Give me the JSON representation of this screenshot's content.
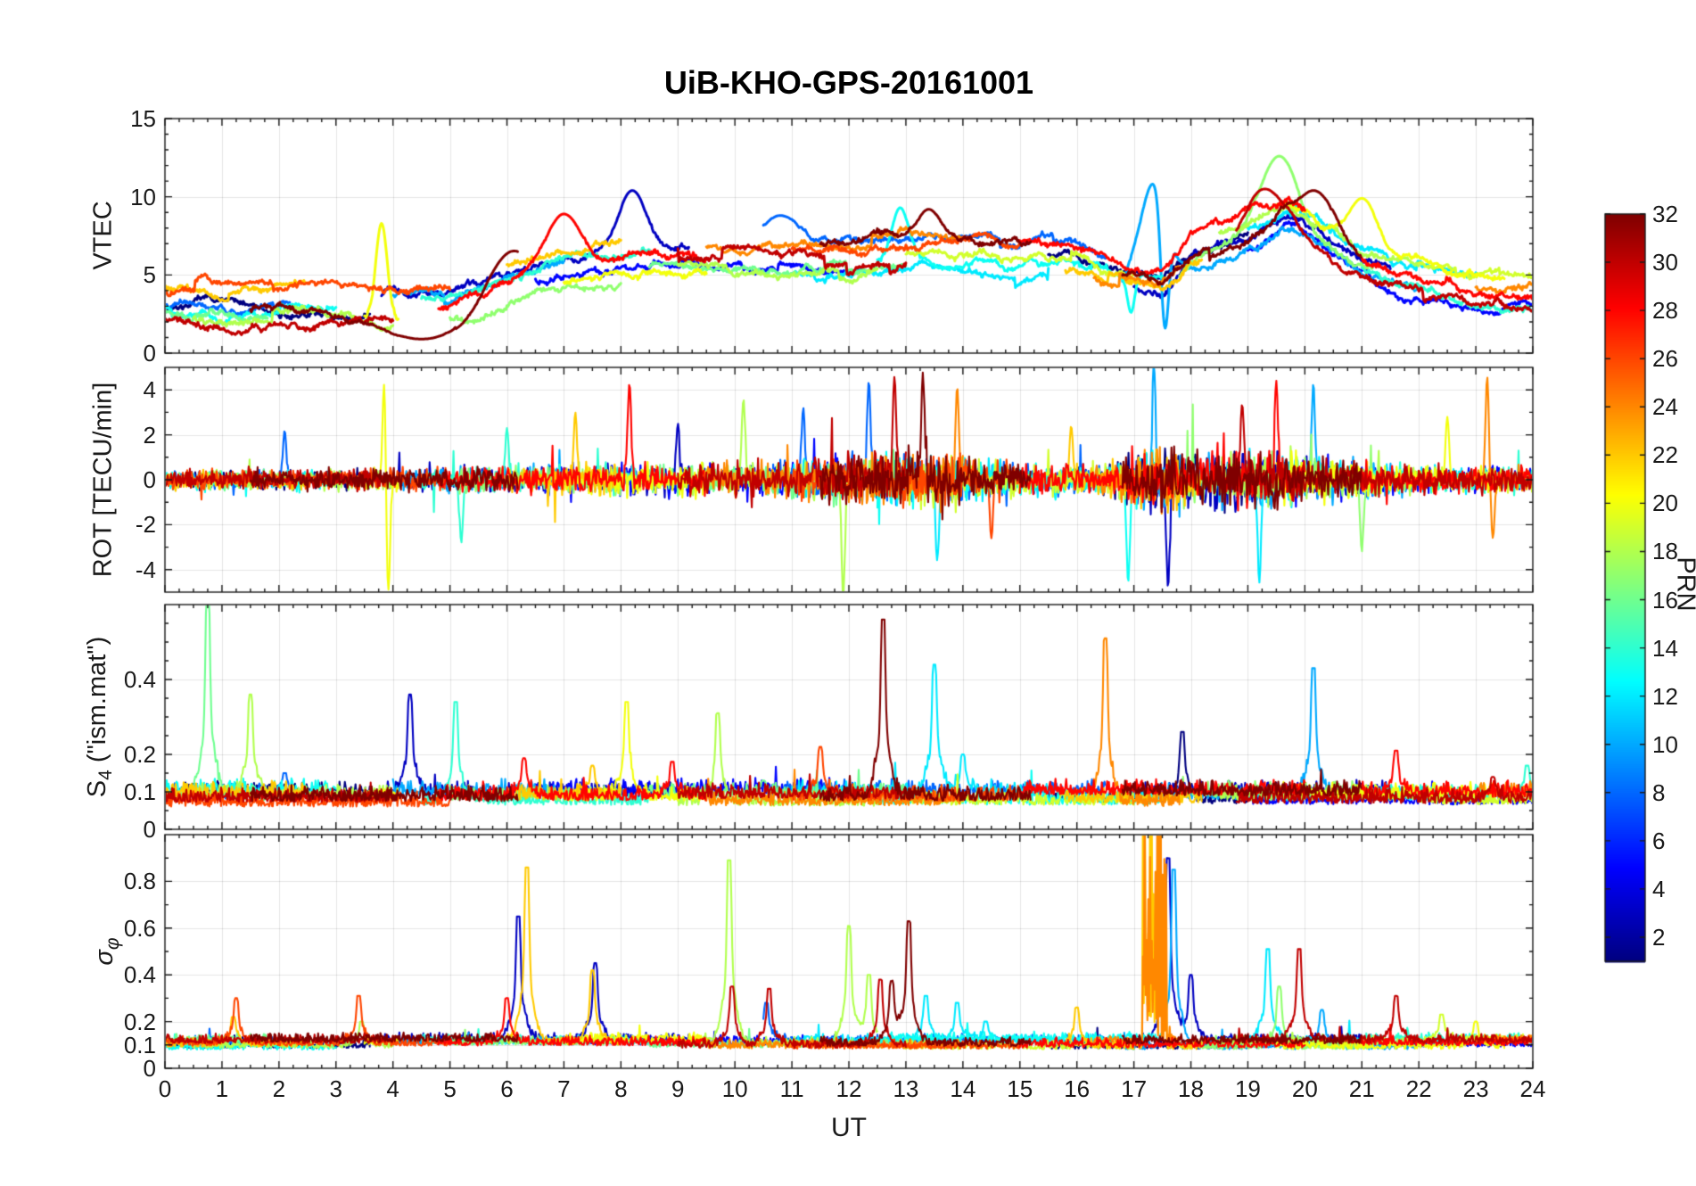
{
  "title": "UiB-KHO-GPS-20161001",
  "xlabel": "UT",
  "x_tick_labels": [
    "0",
    "1",
    "2",
    "3",
    "4",
    "5",
    "6",
    "7",
    "8",
    "9",
    "10",
    "11",
    "12",
    "13",
    "14",
    "15",
    "16",
    "17",
    "18",
    "19",
    "20",
    "21",
    "22",
    "23",
    "24"
  ],
  "axes_color": "#1a1a1a",
  "colorbar": {
    "label": "PRN",
    "colormap": "jet",
    "value_min": 1,
    "value_max": 32,
    "tick_values": [
      32,
      30,
      28,
      26,
      24,
      22,
      20,
      18,
      16,
      14,
      12,
      10,
      8,
      6,
      4,
      2
    ],
    "tick_labels": [
      "32",
      "30",
      "28",
      "26",
      "24",
      "22",
      "20",
      "18",
      "16",
      "14",
      "12",
      "10",
      "8",
      "6",
      "4",
      "2"
    ]
  },
  "arcs": [
    {
      "prn": 1,
      "t0": 0,
      "t1": 3.6
    },
    {
      "prn": 1,
      "t0": 15.5,
      "t1": 19
    },
    {
      "prn": 3,
      "t0": 3.8,
      "t1": 9.2
    },
    {
      "prn": 3,
      "t0": 17,
      "t1": 21.5
    },
    {
      "prn": 5,
      "t0": 6.5,
      "t1": 12
    },
    {
      "prn": 5,
      "t0": 19,
      "t1": 24
    },
    {
      "prn": 8,
      "t0": 0,
      "t1": 2.2
    },
    {
      "prn": 8,
      "t0": 10.5,
      "t1": 16.5
    },
    {
      "prn": 10,
      "t0": 4,
      "t1": 7
    },
    {
      "prn": 10,
      "t0": 16.8,
      "t1": 22
    },
    {
      "prn": 12,
      "t0": 11,
      "t1": 15.5
    },
    {
      "prn": 12,
      "t0": 19,
      "t1": 23
    },
    {
      "prn": 13,
      "t0": 0,
      "t1": 3
    },
    {
      "prn": 13,
      "t0": 12.5,
      "t1": 17.5
    },
    {
      "prn": 14,
      "t0": 4.5,
      "t1": 8.5
    },
    {
      "prn": 14,
      "t0": 21,
      "t1": 24
    },
    {
      "prn": 16,
      "t0": 0,
      "t1": 1.8
    },
    {
      "prn": 16,
      "t0": 8.5,
      "t1": 13
    },
    {
      "prn": 17,
      "t0": 5,
      "t1": 8
    },
    {
      "prn": 17,
      "t0": 17.8,
      "t1": 21.2
    },
    {
      "prn": 18,
      "t0": 0.5,
      "t1": 4
    },
    {
      "prn": 18,
      "t0": 9,
      "t1": 12.5
    },
    {
      "prn": 18,
      "t0": 18.5,
      "t1": 22
    },
    {
      "prn": 19,
      "t0": 13,
      "t1": 17
    },
    {
      "prn": 19,
      "t0": 22,
      "t1": 24
    },
    {
      "prn": 20,
      "t0": 3.5,
      "t1": 4.1
    },
    {
      "prn": 20,
      "t0": 7,
      "t1": 9.5
    },
    {
      "prn": 20,
      "t0": 19.5,
      "t1": 23.5
    },
    {
      "prn": 22,
      "t0": 0,
      "t1": 2.5
    },
    {
      "prn": 22,
      "t0": 6,
      "t1": 8
    },
    {
      "prn": 22,
      "t0": 15.8,
      "t1": 18.2
    },
    {
      "prn": 24,
      "t0": 9.5,
      "t1": 14
    },
    {
      "prn": 24,
      "t0": 16.3,
      "t1": 17.8
    },
    {
      "prn": 24,
      "t0": 23,
      "t1": 24
    },
    {
      "prn": 26,
      "t0": 0,
      "t1": 5
    },
    {
      "prn": 26,
      "t0": 11,
      "t1": 15
    },
    {
      "prn": 28,
      "t0": 4.8,
      "t1": 9.5
    },
    {
      "prn": 28,
      "t0": 15,
      "t1": 20
    },
    {
      "prn": 28,
      "t0": 21,
      "t1": 24
    },
    {
      "prn": 30,
      "t0": 0,
      "t1": 4
    },
    {
      "prn": 30,
      "t0": 9,
      "t1": 13
    },
    {
      "prn": 30,
      "t0": 18.8,
      "t1": 24
    },
    {
      "prn": 32,
      "t0": 1.5,
      "t1": 6.2
    },
    {
      "prn": 32,
      "t0": 11.5,
      "t1": 15.2
    },
    {
      "prn": 32,
      "t0": 16.8,
      "t1": 21
    }
  ],
  "chart_data": [
    {
      "type": "line",
      "name": "VTEC",
      "ylabel": "VTEC",
      "xlim": [
        0,
        24
      ],
      "ylim": [
        0,
        15
      ],
      "yticks": [
        0,
        5,
        10,
        15
      ],
      "ytick_labels": [
        "0",
        "5",
        "10",
        "15"
      ],
      "grid": true,
      "trend_x": [
        0,
        1,
        2,
        3,
        4,
        5,
        6,
        7,
        8,
        9,
        10,
        11,
        12,
        13,
        14,
        15,
        16,
        16.8,
        17.5,
        18,
        19,
        19.7,
        20.5,
        21,
        22,
        23,
        24
      ],
      "trend_median": [
        3.3,
        3.1,
        3.0,
        3.1,
        3.0,
        3.4,
        4.6,
        5.6,
        6.0,
        6.2,
        6.0,
        5.9,
        5.8,
        6.2,
        6.3,
        6.0,
        5.6,
        4.6,
        4.4,
        6.3,
        7.6,
        8.9,
        7.2,
        6.0,
        4.8,
        4.0,
        3.9
      ],
      "peaks": [
        {
          "t": 3.8,
          "v": 8.3,
          "prn": 20,
          "w": 0.1
        },
        {
          "t": 6.0,
          "v": 7.5,
          "prn": 32,
          "w": 0.4
        },
        {
          "t": 7.0,
          "v": 8.9,
          "prn": 28,
          "w": 0.3
        },
        {
          "t": 8.2,
          "v": 10.4,
          "prn": 3,
          "w": 0.25
        },
        {
          "t": 10.8,
          "v": 8.8,
          "prn": 8,
          "w": 0.3
        },
        {
          "t": 12.9,
          "v": 9.3,
          "prn": 13,
          "w": 0.15
        },
        {
          "t": 13.4,
          "v": 9.2,
          "prn": 32,
          "w": 0.2
        },
        {
          "t": 17.35,
          "v": 10.9,
          "prn": 10,
          "w": 0.25
        },
        {
          "t": 19.55,
          "v": 12.6,
          "prn": 17,
          "w": 0.3
        },
        {
          "t": 19.3,
          "v": 10.5,
          "prn": 30,
          "w": 0.35
        },
        {
          "t": 20.15,
          "v": 10.4,
          "prn": 32,
          "w": 0.3
        },
        {
          "t": 21.0,
          "v": 9.9,
          "prn": 20,
          "w": 0.25
        },
        {
          "t": 4.5,
          "v": 0.9,
          "prn": 32,
          "w": 0.8
        },
        {
          "t": 17.55,
          "v": 1.6,
          "prn": 10,
          "w": 0.07
        },
        {
          "t": 16.95,
          "v": 2.6,
          "prn": 13,
          "w": 0.06
        }
      ]
    },
    {
      "type": "line",
      "name": "ROT",
      "ylabel": "ROT [TECU/min]",
      "xlim": [
        0,
        24
      ],
      "ylim": [
        -5,
        5
      ],
      "yticks": [
        -4,
        -2,
        0,
        2,
        4
      ],
      "ytick_labels": [
        "-4",
        "-2",
        "0",
        "2",
        "4"
      ],
      "grid": true,
      "activity_x": [
        0,
        3,
        6,
        9,
        11,
        12,
        13.5,
        15,
        16.5,
        17.2,
        18,
        19,
        20,
        21,
        22,
        24
      ],
      "activity_amp": [
        0.5,
        0.55,
        0.75,
        0.85,
        1.0,
        1.3,
        1.5,
        0.9,
        0.8,
        1.7,
        1.7,
        1.5,
        1.3,
        0.9,
        0.7,
        0.7
      ],
      "spikes": [
        {
          "t": 2.1,
          "v": 2.2,
          "prn": 8
        },
        {
          "t": 3.85,
          "v": 4.7,
          "prn": 20
        },
        {
          "t": 3.92,
          "v": -4.9,
          "prn": 20
        },
        {
          "t": 5.2,
          "v": -2.8,
          "prn": 14
        },
        {
          "t": 6.0,
          "v": 2.3,
          "prn": 14
        },
        {
          "t": 7.2,
          "v": 3.0,
          "prn": 22
        },
        {
          "t": 8.15,
          "v": 4.3,
          "prn": 28
        },
        {
          "t": 9.0,
          "v": 2.5,
          "prn": 3
        },
        {
          "t": 10.15,
          "v": 3.6,
          "prn": 18
        },
        {
          "t": 11.2,
          "v": 3.2,
          "prn": 8
        },
        {
          "t": 11.9,
          "v": -5.2,
          "prn": 18
        },
        {
          "t": 12.35,
          "v": 4.4,
          "prn": 8
        },
        {
          "t": 12.8,
          "v": 4.6,
          "prn": 30
        },
        {
          "t": 13.3,
          "v": 4.8,
          "prn": 32
        },
        {
          "t": 13.55,
          "v": -3.6,
          "prn": 12
        },
        {
          "t": 13.9,
          "v": 4.1,
          "prn": 24
        },
        {
          "t": 14.5,
          "v": -2.6,
          "prn": 26
        },
        {
          "t": 15.9,
          "v": 2.4,
          "prn": 22
        },
        {
          "t": 16.9,
          "v": -4.6,
          "prn": 13
        },
        {
          "t": 17.35,
          "v": 5.2,
          "prn": 10
        },
        {
          "t": 17.6,
          "v": -4.8,
          "prn": 3
        },
        {
          "t": 18.9,
          "v": 3.4,
          "prn": 30
        },
        {
          "t": 19.2,
          "v": -4.6,
          "prn": 12
        },
        {
          "t": 19.5,
          "v": 4.4,
          "prn": 28
        },
        {
          "t": 20.15,
          "v": 4.3,
          "prn": 10
        },
        {
          "t": 21.0,
          "v": -3.2,
          "prn": 17
        },
        {
          "t": 22.5,
          "v": 2.8,
          "prn": 20
        },
        {
          "t": 23.2,
          "v": 4.6,
          "prn": 24
        },
        {
          "t": 23.3,
          "v": -2.6,
          "prn": 24
        }
      ]
    },
    {
      "type": "line",
      "name": "S4",
      "ylabel_main": "S",
      "ylabel_sub": "4",
      "ylabel_rest": " (\"ism.mat\")",
      "xlim": [
        0,
        24
      ],
      "ylim": [
        0,
        0.6
      ],
      "yticks": [
        0,
        0.1,
        0.2,
        0.4
      ],
      "ytick_labels": [
        "0",
        "0.1",
        "0.2",
        "0.4"
      ],
      "grid": true,
      "baseline": 0.06,
      "spikes": [
        {
          "t": 0.75,
          "v": 0.62,
          "prn": 16
        },
        {
          "t": 1.5,
          "v": 0.36,
          "prn": 18
        },
        {
          "t": 2.1,
          "v": 0.15,
          "prn": 8
        },
        {
          "t": 4.3,
          "v": 0.36,
          "prn": 3
        },
        {
          "t": 5.1,
          "v": 0.34,
          "prn": 14
        },
        {
          "t": 6.3,
          "v": 0.19,
          "prn": 28
        },
        {
          "t": 7.5,
          "v": 0.17,
          "prn": 22
        },
        {
          "t": 8.1,
          "v": 0.34,
          "prn": 20
        },
        {
          "t": 8.9,
          "v": 0.18,
          "prn": 28
        },
        {
          "t": 9.7,
          "v": 0.31,
          "prn": 18
        },
        {
          "t": 10.5,
          "v": 0.13,
          "prn": 16
        },
        {
          "t": 11.5,
          "v": 0.22,
          "prn": 26
        },
        {
          "t": 12.6,
          "v": 0.56,
          "prn": 32
        },
        {
          "t": 13.5,
          "v": 0.44,
          "prn": 12
        },
        {
          "t": 14.0,
          "v": 0.2,
          "prn": 12
        },
        {
          "t": 16.5,
          "v": 0.51,
          "prn": 24
        },
        {
          "t": 17.85,
          "v": 0.26,
          "prn": 1
        },
        {
          "t": 20.15,
          "v": 0.43,
          "prn": 10
        },
        {
          "t": 21.6,
          "v": 0.21,
          "prn": 28
        },
        {
          "t": 23.3,
          "v": 0.14,
          "prn": 30
        },
        {
          "t": 23.9,
          "v": 0.17,
          "prn": 14
        }
      ]
    },
    {
      "type": "line",
      "name": "sigma-phi",
      "ylabel_main": "σ",
      "ylabel_sub": "φ",
      "xlim": [
        0,
        24
      ],
      "ylim": [
        0,
        1
      ],
      "yticks": [
        0,
        0.1,
        0.2,
        0.4,
        0.6,
        0.8
      ],
      "ytick_labels": [
        "0",
        "0.1",
        "0.2",
        "0.4",
        "0.6",
        "0.8"
      ],
      "grid": true,
      "baseline": 0.08,
      "saturated_event": {
        "t0": 17.15,
        "t1": 17.58,
        "prns": [
          22,
          24
        ],
        "vmin": 0.12,
        "vmax": 1.25
      },
      "spikes": [
        {
          "t": 1.2,
          "v": 0.22,
          "prn": 22
        },
        {
          "t": 1.25,
          "v": 0.3,
          "prn": 26
        },
        {
          "t": 3.4,
          "v": 0.31,
          "prn": 26
        },
        {
          "t": 3.45,
          "v": 0.2,
          "prn": 18
        },
        {
          "t": 6.0,
          "v": 0.3,
          "prn": 28
        },
        {
          "t": 6.2,
          "v": 0.65,
          "prn": 3
        },
        {
          "t": 6.35,
          "v": 0.86,
          "prn": 22
        },
        {
          "t": 7.5,
          "v": 0.42,
          "prn": 22
        },
        {
          "t": 7.55,
          "v": 0.45,
          "prn": 3
        },
        {
          "t": 9.9,
          "v": 0.89,
          "prn": 18
        },
        {
          "t": 9.95,
          "v": 0.35,
          "prn": 30
        },
        {
          "t": 10.55,
          "v": 0.28,
          "prn": 8
        },
        {
          "t": 10.6,
          "v": 0.34,
          "prn": 30
        },
        {
          "t": 12.0,
          "v": 0.61,
          "prn": 18
        },
        {
          "t": 12.35,
          "v": 0.4,
          "prn": 18
        },
        {
          "t": 12.55,
          "v": 0.38,
          "prn": 30
        },
        {
          "t": 12.75,
          "v": 0.37,
          "prn": 32
        },
        {
          "t": 13.05,
          "v": 0.63,
          "prn": 32
        },
        {
          "t": 13.35,
          "v": 0.31,
          "prn": 12
        },
        {
          "t": 13.9,
          "v": 0.28,
          "prn": 12
        },
        {
          "t": 14.4,
          "v": 0.2,
          "prn": 12
        },
        {
          "t": 16.0,
          "v": 0.26,
          "prn": 22
        },
        {
          "t": 17.6,
          "v": 0.9,
          "prn": 3
        },
        {
          "t": 17.7,
          "v": 0.85,
          "prn": 10
        },
        {
          "t": 18.0,
          "v": 0.4,
          "prn": 3
        },
        {
          "t": 19.35,
          "v": 0.51,
          "prn": 12
        },
        {
          "t": 19.55,
          "v": 0.35,
          "prn": 17
        },
        {
          "t": 19.9,
          "v": 0.51,
          "prn": 30
        },
        {
          "t": 20.3,
          "v": 0.25,
          "prn": 10
        },
        {
          "t": 21.6,
          "v": 0.31,
          "prn": 30
        },
        {
          "t": 22.4,
          "v": 0.23,
          "prn": 19
        },
        {
          "t": 23.0,
          "v": 0.2,
          "prn": 20
        }
      ]
    }
  ]
}
